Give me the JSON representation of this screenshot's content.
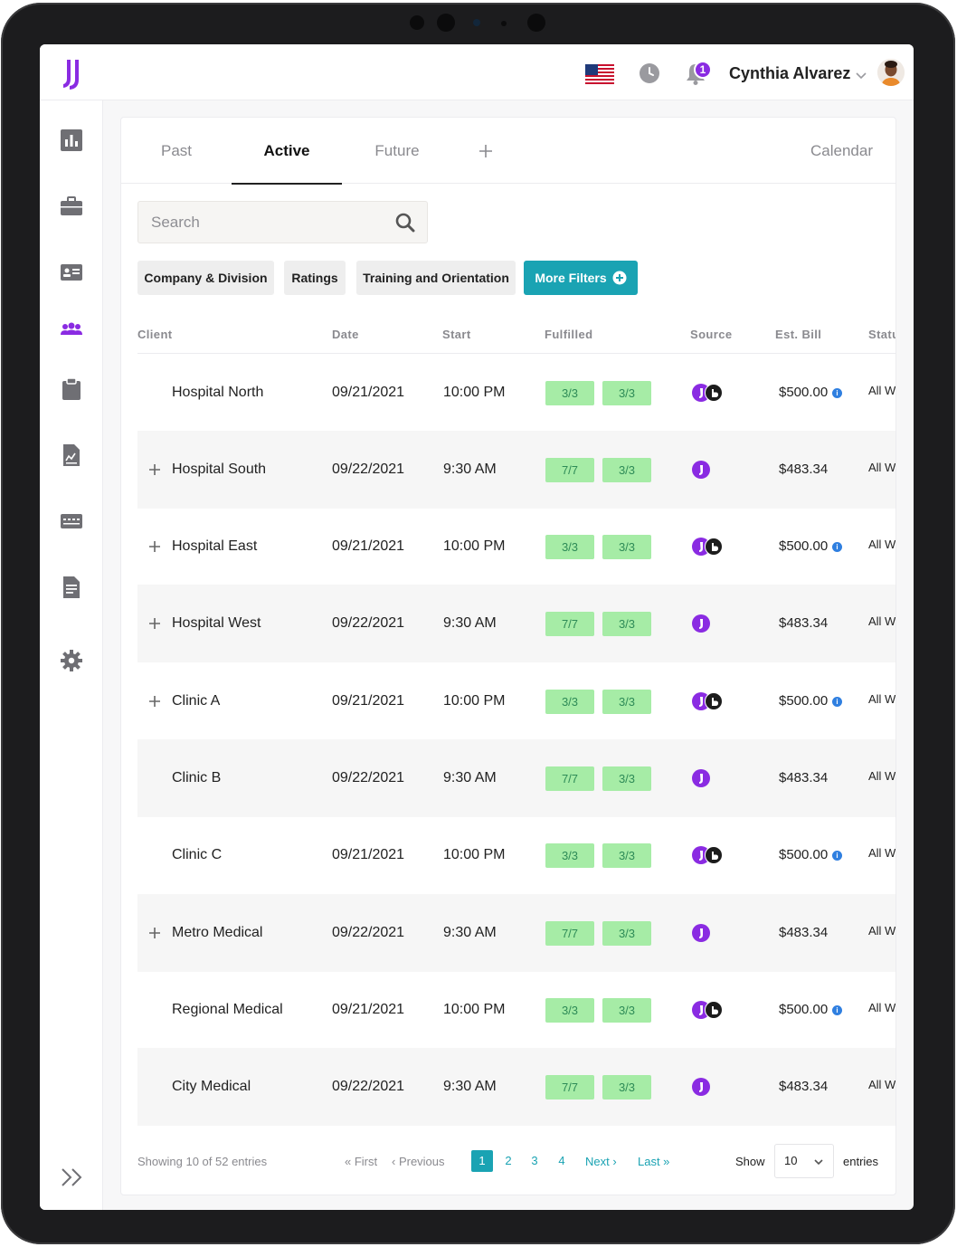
{
  "user": {
    "name": "Cynthia Alvarez",
    "notification_count": "1"
  },
  "tabs": [
    {
      "label": "Past"
    },
    {
      "label": "Active"
    },
    {
      "label": "Future"
    }
  ],
  "calendar_label": "Calendar",
  "search": {
    "placeholder": "Search"
  },
  "filters": {
    "company": "Company & Division",
    "ratings": "Ratings",
    "training": "Training and Orientation",
    "more": "More Filters"
  },
  "table": {
    "headers": {
      "client": "Client",
      "date": "Date",
      "start": "Start",
      "fulfilled": "Fulfilled",
      "source": "Source",
      "bill": "Est. Bill",
      "status": "Statu"
    },
    "rows": [
      {
        "client": "Hospital North",
        "date": "09/21/2021",
        "start": "10:00 PM",
        "f1": "3/3",
        "f2": "3/3",
        "bill": "$500.00",
        "status": "All W"
      },
      {
        "client": "Hospital South",
        "date": "09/22/2021",
        "start": "9:30 AM",
        "f1": "7/7",
        "f2": "3/3",
        "bill": "$483.34",
        "status": "All W"
      },
      {
        "client": "Hospital East",
        "date": "09/21/2021",
        "start": "10:00 PM",
        "f1": "3/3",
        "f2": "3/3",
        "bill": "$500.00",
        "status": "All W"
      },
      {
        "client": "Hospital West",
        "date": "09/22/2021",
        "start": "9:30 AM",
        "f1": "7/7",
        "f2": "3/3",
        "bill": "$483.34",
        "status": "All W"
      },
      {
        "client": "Clinic A",
        "date": "09/21/2021",
        "start": "10:00 PM",
        "f1": "3/3",
        "f2": "3/3",
        "bill": "$500.00",
        "status": "All W"
      },
      {
        "client": "Clinic B",
        "date": "09/22/2021",
        "start": "9:30 AM",
        "f1": "7/7",
        "f2": "3/3",
        "bill": "$483.34",
        "status": "All W"
      },
      {
        "client": "Clinic C",
        "date": "09/21/2021",
        "start": "10:00 PM",
        "f1": "3/3",
        "f2": "3/3",
        "bill": "$500.00",
        "status": "All W"
      },
      {
        "client": "Metro Medical",
        "date": "09/22/2021",
        "start": "9:30 AM",
        "f1": "7/7",
        "f2": "3/3",
        "bill": "$483.34",
        "status": "All W"
      },
      {
        "client": "Regional Medical",
        "date": "09/21/2021",
        "start": "10:00 PM",
        "f1": "3/3",
        "f2": "3/3",
        "bill": "$500.00",
        "status": "All W"
      },
      {
        "client": "City Medical",
        "date": "09/22/2021",
        "start": "9:30 AM",
        "f1": "7/7",
        "f2": "3/3",
        "bill": "$483.34",
        "status": "All W"
      }
    ]
  },
  "pagination": {
    "showing": "Showing 10 of 52 entries",
    "first": "« First",
    "previous": "‹ Previous",
    "pages": [
      "1",
      "2",
      "3",
      "4"
    ],
    "next": "Next ›",
    "last": "Last »",
    "show_label": "Show",
    "page_size": "10",
    "entries_label": "entries"
  },
  "colors": {
    "brand": "#8a2be2",
    "accent": "#1aa3b3",
    "fulfilled_bg": "#a6eca6"
  }
}
